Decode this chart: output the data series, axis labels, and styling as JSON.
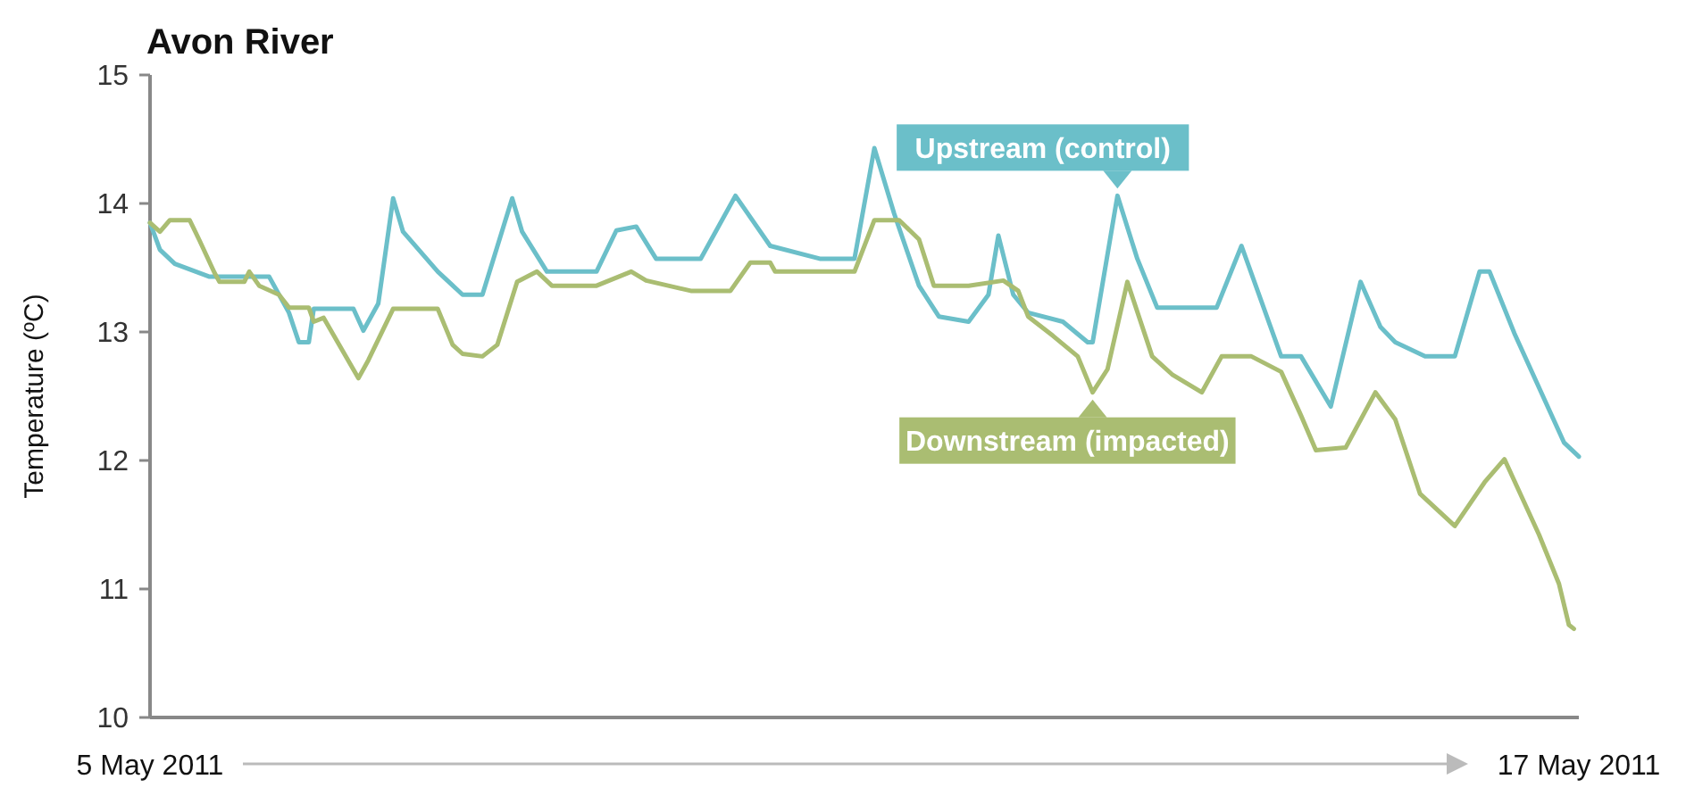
{
  "chart_data": {
    "type": "line",
    "title": "Avon River",
    "ylabel": "Temperature (ºC)",
    "xlim": [
      "2011-05-05",
      "2011-05-17"
    ],
    "xticks": [
      {
        "value": "2011-05-05",
        "label": "5 May 2011"
      },
      {
        "value": "2011-05-17",
        "label": "17 May 2011"
      }
    ],
    "ylim": [
      10,
      15
    ],
    "yticks": [
      10,
      11,
      12,
      13,
      14,
      15
    ],
    "series": [
      {
        "color": "#6bbfc9",
        "x": [
          "2011-05-05T00:00",
          "2011-05-05T02:00",
          "2011-05-05T05:00",
          "2011-05-05T12:00",
          "2011-05-06T00:00",
          "2011-05-06T04:00",
          "2011-05-06T06:00",
          "2011-05-06T08:00",
          "2011-05-06T09:00",
          "2011-05-06T17:00",
          "2011-05-06T19:00",
          "2011-05-06T22:00",
          "2011-05-07T01:00",
          "2011-05-07T03:00",
          "2011-05-07T10:00",
          "2011-05-07T15:00",
          "2011-05-07T19:00",
          "2011-05-08T01:00",
          "2011-05-08T03:00",
          "2011-05-08T08:00",
          "2011-05-08T18:00",
          "2011-05-08T22:00",
          "2011-05-09T02:00",
          "2011-05-09T06:00",
          "2011-05-09T15:00",
          "2011-05-09T22:00",
          "2011-05-10T05:00",
          "2011-05-10T15:00",
          "2011-05-10T22:00",
          "2011-05-11T02:00",
          "2011-05-11T06:00",
          "2011-05-11T11:00",
          "2011-05-11T15:00",
          "2011-05-11T21:00",
          "2011-05-12T01:00",
          "2011-05-12T03:00",
          "2011-05-12T06:00",
          "2011-05-12T09:00",
          "2011-05-12T16:00",
          "2011-05-12T21:00",
          "2011-05-12T22:00",
          "2011-05-13T03:00",
          "2011-05-13T07:00",
          "2011-05-13T11:00",
          "2011-05-13T23:00",
          "2011-05-14T04:00",
          "2011-05-14T12:00",
          "2011-05-14T16:00",
          "2011-05-14T22:00",
          "2011-05-15T04:00",
          "2011-05-15T08:00",
          "2011-05-15T11:00",
          "2011-05-15T17:00",
          "2011-05-15T23:00",
          "2011-05-16T04:00",
          "2011-05-16T06:00",
          "2011-05-16T11:00",
          "2011-05-16T21:00",
          "2011-05-17T00:00"
        ],
        "values": [
          13.85,
          13.64,
          13.53,
          13.43,
          13.43,
          13.15,
          12.92,
          12.92,
          13.18,
          13.18,
          13.01,
          13.22,
          14.04,
          13.78,
          13.47,
          13.29,
          13.29,
          14.04,
          13.78,
          13.47,
          13.47,
          13.79,
          13.82,
          13.57,
          13.57,
          14.06,
          13.67,
          13.57,
          13.57,
          14.43,
          13.92,
          13.36,
          13.12,
          13.08,
          13.29,
          13.75,
          13.29,
          13.15,
          13.08,
          12.92,
          12.92,
          14.06,
          13.57,
          13.19,
          13.19,
          13.67,
          12.81,
          12.81,
          12.42,
          13.39,
          13.04,
          12.92,
          12.81,
          12.81,
          13.47,
          13.47,
          12.99,
          12.14,
          12.03
        ]
      },
      {
        "color": "#aabd72",
        "x": [
          "2011-05-05T00:00",
          "2011-05-05T02:00",
          "2011-05-05T04:00",
          "2011-05-05T08:00",
          "2011-05-05T10:00",
          "2011-05-05T13:00",
          "2011-05-05T14:00",
          "2011-05-05T19:00",
          "2011-05-05T20:00",
          "2011-05-05T22:00",
          "2011-05-06T02:00",
          "2011-05-06T04:00",
          "2011-05-06T08:00",
          "2011-05-06T09:00",
          "2011-05-06T11:00",
          "2011-05-06T18:00",
          "2011-05-06T20:00",
          "2011-05-07T01:00",
          "2011-05-07T10:00",
          "2011-05-07T13:00",
          "2011-05-07T15:00",
          "2011-05-07T19:00",
          "2011-05-07T22:00",
          "2011-05-08T02:00",
          "2011-05-08T06:00",
          "2011-05-08T09:00",
          "2011-05-08T18:00",
          "2011-05-09T01:00",
          "2011-05-09T04:00",
          "2011-05-09T13:00",
          "2011-05-09T21:00",
          "2011-05-10T01:00",
          "2011-05-10T05:00",
          "2011-05-10T06:00",
          "2011-05-10T22:00",
          "2011-05-11T02:00",
          "2011-05-11T07:00",
          "2011-05-11T11:00",
          "2011-05-11T14:00",
          "2011-05-11T21:00",
          "2011-05-12T04:00",
          "2011-05-12T07:00",
          "2011-05-12T09:00",
          "2011-05-12T14:00",
          "2011-05-12T19:00",
          "2011-05-12T22:00",
          "2011-05-13T01:00",
          "2011-05-13T05:00",
          "2011-05-13T10:00",
          "2011-05-13T14:00",
          "2011-05-13T20:00",
          "2011-05-14T00:00",
          "2011-05-14T06:00",
          "2011-05-14T12:00",
          "2011-05-14T16:00",
          "2011-05-14T19:00",
          "2011-05-15T01:00",
          "2011-05-15T07:00",
          "2011-05-15T11:00",
          "2011-05-15T16:00",
          "2011-05-15T23:00",
          "2011-05-16T05:00",
          "2011-05-16T09:00",
          "2011-05-16T16:00",
          "2011-05-16T20:00",
          "2011-05-16T22:00",
          "2011-05-16T23:00"
        ],
        "values": [
          13.85,
          13.78,
          13.87,
          13.87,
          13.71,
          13.46,
          13.39,
          13.39,
          13.47,
          13.36,
          13.29,
          13.19,
          13.19,
          13.08,
          13.11,
          12.64,
          12.78,
          13.18,
          13.18,
          12.9,
          12.83,
          12.81,
          12.9,
          13.39,
          13.47,
          13.36,
          13.36,
          13.47,
          13.4,
          13.32,
          13.32,
          13.54,
          13.54,
          13.47,
          13.47,
          13.87,
          13.87,
          13.72,
          13.36,
          13.36,
          13.4,
          13.32,
          13.12,
          12.97,
          12.81,
          12.53,
          12.71,
          13.39,
          12.81,
          12.67,
          12.53,
          12.81,
          12.81,
          12.69,
          12.35,
          12.08,
          12.1,
          12.53,
          12.32,
          11.74,
          11.49,
          11.83,
          12.01,
          11.42,
          11.04,
          10.72,
          10.69
        ]
      }
    ],
    "annotations": [
      {
        "text": "Upstream (control)",
        "x": "2011-05-13T03:00",
        "y": 14.06
      },
      {
        "text": "Downstream (impacted)",
        "x": "2011-05-12T22:00",
        "y": 12.53
      }
    ]
  }
}
